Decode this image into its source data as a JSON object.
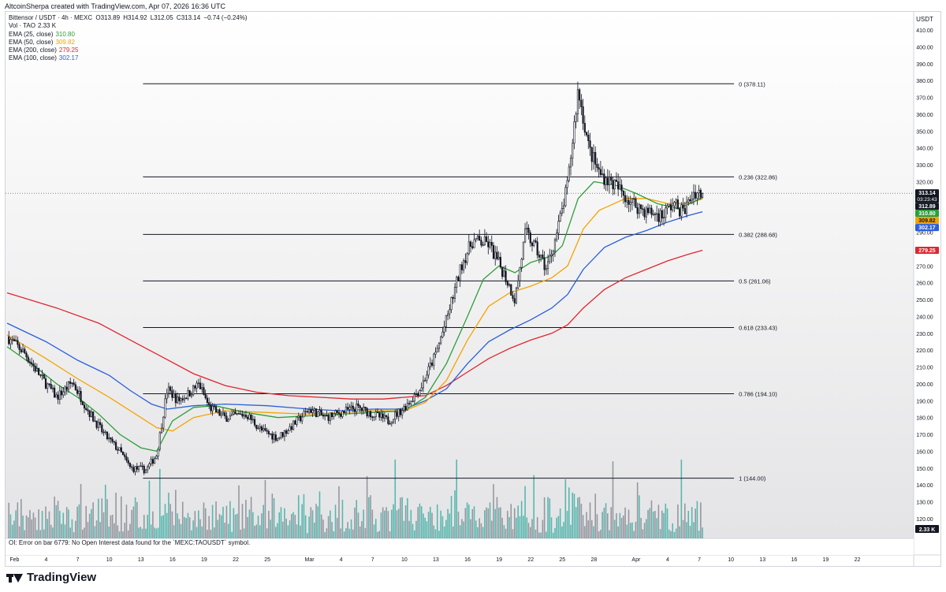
{
  "attribution": "AltcoinSherpa created with TradingView.com, Apr 07, 2026 16:36 UTC",
  "legend": {
    "symbol": "Bittensor / USDT · 4h · MEXC",
    "ohlc": {
      "open": "O313.89",
      "high": "H314.92",
      "low": "L312.05",
      "close": "C313.14",
      "change": "−0.74 (−0.24%)"
    },
    "rows": [
      {
        "label": "Vol · TAO",
        "value": "2.33 K",
        "color": "#131722"
      },
      {
        "label": "EMA (25, close)",
        "value": "310.80",
        "color": "#2e9e3a"
      },
      {
        "label": "EMA (50, close)",
        "value": "309.82",
        "color": "#f5a300"
      },
      {
        "label": "EMA (200, close)",
        "value": "279.25",
        "color": "#e0262d"
      },
      {
        "label": "EMA (100, close)",
        "value": "302.17",
        "color": "#2b5fd9"
      }
    ]
  },
  "oi_message": "OI: Error on bar 6779: No Open Interest data found for the `MEXC:TAOUSDT` symbol.",
  "footer_brand": "TradingView",
  "chart_data": {
    "type": "candlestick",
    "title": "",
    "currency_label": "USDT",
    "y_ticks": [
      120,
      130,
      140,
      150,
      160,
      170,
      180,
      190,
      200,
      210,
      220,
      230,
      240,
      250,
      260,
      270,
      280,
      290,
      300,
      310,
      320,
      330,
      340,
      350,
      360,
      370,
      380,
      390,
      400,
      410
    ],
    "y_tick_labels": [
      "120.00",
      "130.00",
      "140.00",
      "150.00",
      "160.00",
      "170.00",
      "180.00",
      "190.00",
      "200.00",
      "210.00",
      "220.00",
      "230.00",
      "240.00",
      "250.00",
      "260.00",
      "270.00",
      "280.00",
      "290.00",
      "300.00",
      "310.00",
      "320.00",
      "330.00",
      "340.00",
      "350.00",
      "360.00",
      "370.00",
      "380.00",
      "390.00",
      "400.00",
      "410.00"
    ],
    "ylim": [
      112,
      418
    ],
    "x_tick_labels": [
      "Feb",
      "4",
      "7",
      "10",
      "13",
      "16",
      "19",
      "22",
      "25",
      "Mar",
      "4",
      "7",
      "10",
      "13",
      "16",
      "19",
      "22",
      "25",
      "28",
      "Apr",
      "4",
      "7",
      "10",
      "13",
      "16",
      "19",
      "22"
    ],
    "x_tick_day_index": [
      0,
      3,
      6,
      9,
      12,
      15,
      18,
      21,
      24,
      28,
      31,
      34,
      37,
      40,
      43,
      46,
      49,
      52,
      55,
      59,
      62,
      65,
      68,
      71,
      74,
      77,
      80
    ],
    "xlim_days": [
      -0.7,
      84.3
    ],
    "last_day_index": 65.3,
    "fib_levels": [
      {
        "ratio": "0",
        "price": 378.11,
        "label": "0 (378.11)"
      },
      {
        "ratio": "0.236",
        "price": 322.86,
        "label": "0.236 (322.86)"
      },
      {
        "ratio": "0.382",
        "price": 288.68,
        "label": "0.382 (288.68)"
      },
      {
        "ratio": "0.5",
        "price": 261.06,
        "label": "0.5 (261.06)"
      },
      {
        "ratio": "0.618",
        "price": 233.43,
        "label": "0.618 (233.43)"
      },
      {
        "ratio": "0.786",
        "price": 194.1,
        "label": "0.786 (194.10)"
      },
      {
        "ratio": "1",
        "price": 144.0,
        "label": "1 (144.00)"
      }
    ],
    "fib_day_range": [
      12.2,
      65.3
    ],
    "price_path": [
      [
        -0.7,
        228
      ],
      [
        1,
        218
      ],
      [
        2.5,
        204
      ],
      [
        4,
        192
      ],
      [
        5.5,
        201
      ],
      [
        7,
        184
      ],
      [
        8.5,
        170
      ],
      [
        10,
        160
      ],
      [
        11,
        150
      ],
      [
        12.5,
        149
      ],
      [
        13.5,
        158
      ],
      [
        14.5,
        197
      ],
      [
        15.5,
        190
      ],
      [
        16.5,
        194
      ],
      [
        17.5,
        200
      ],
      [
        18.5,
        186
      ],
      [
        20,
        180
      ],
      [
        22,
        182
      ],
      [
        23.5,
        172
      ],
      [
        25,
        168
      ],
      [
        26.5,
        176
      ],
      [
        28,
        185
      ],
      [
        29.5,
        180
      ],
      [
        31,
        183
      ],
      [
        32.5,
        186
      ],
      [
        34,
        182
      ],
      [
        35.5,
        178
      ],
      [
        37,
        186
      ],
      [
        38.5,
        197
      ],
      [
        40,
        218
      ],
      [
        41,
        238
      ],
      [
        42.5,
        272
      ],
      [
        43.5,
        285
      ],
      [
        45,
        283
      ],
      [
        46.5,
        265
      ],
      [
        47.5,
        250
      ],
      [
        48.5,
        290
      ],
      [
        49.5,
        280
      ],
      [
        50.5,
        268
      ],
      [
        51.5,
        290
      ],
      [
        52.5,
        318
      ],
      [
        53.5,
        375
      ],
      [
        54.5,
        340
      ],
      [
        55.5,
        325
      ],
      [
        57,
        318
      ],
      [
        58.5,
        308
      ],
      [
        60,
        302
      ],
      [
        61.5,
        300
      ],
      [
        62.5,
        307
      ],
      [
        63.5,
        302
      ],
      [
        64.5,
        314
      ],
      [
        65.3,
        313.14
      ]
    ],
    "ema": {
      "ema25": {
        "color": "#2e9e3a",
        "last": 310.8,
        "points": [
          [
            -0.7,
            222
          ],
          [
            2,
            210
          ],
          [
            4,
            200
          ],
          [
            6,
            192
          ],
          [
            8,
            182
          ],
          [
            10,
            170
          ],
          [
            12,
            162
          ],
          [
            13.5,
            160
          ],
          [
            15,
            178
          ],
          [
            17,
            186
          ],
          [
            19,
            187
          ],
          [
            22,
            183
          ],
          [
            25,
            180
          ],
          [
            28,
            181
          ],
          [
            31,
            182
          ],
          [
            34,
            183
          ],
          [
            37,
            184
          ],
          [
            39,
            192
          ],
          [
            41,
            212
          ],
          [
            43,
            240
          ],
          [
            44.5,
            262
          ],
          [
            46,
            270
          ],
          [
            47.5,
            266
          ],
          [
            49,
            272
          ],
          [
            51,
            276
          ],
          [
            52,
            282
          ],
          [
            53.5,
            310
          ],
          [
            55,
            320
          ],
          [
            57,
            318
          ],
          [
            59,
            313
          ],
          [
            61,
            307
          ],
          [
            63,
            304
          ],
          [
            64.5,
            308
          ],
          [
            65.3,
            310.8
          ]
        ]
      },
      "ema50": {
        "color": "#f5a300",
        "last": 309.82,
        "points": [
          [
            -0.7,
            229
          ],
          [
            3,
            215
          ],
          [
            6,
            203
          ],
          [
            9,
            192
          ],
          [
            12,
            180
          ],
          [
            13.5,
            174
          ],
          [
            15,
            172
          ],
          [
            17,
            180
          ],
          [
            20,
            184
          ],
          [
            24,
            183
          ],
          [
            28,
            182
          ],
          [
            31,
            183
          ],
          [
            34,
            184
          ],
          [
            37,
            184
          ],
          [
            39,
            189
          ],
          [
            41,
            202
          ],
          [
            43,
            226
          ],
          [
            45,
            246
          ],
          [
            47,
            254
          ],
          [
            49,
            258
          ],
          [
            51,
            263
          ],
          [
            52.5,
            270
          ],
          [
            54,
            292
          ],
          [
            55.5,
            303
          ],
          [
            58,
            310
          ],
          [
            60,
            310
          ],
          [
            62,
            307
          ],
          [
            64,
            307
          ],
          [
            65.3,
            309.82
          ]
        ]
      },
      "ema100": {
        "color": "#2b5fd9",
        "last": 302.17,
        "points": [
          [
            -0.7,
            236
          ],
          [
            3,
            225
          ],
          [
            6,
            214
          ],
          [
            9,
            205
          ],
          [
            11,
            196
          ],
          [
            13,
            188
          ],
          [
            14.5,
            185
          ],
          [
            17,
            187
          ],
          [
            20,
            188
          ],
          [
            24,
            187
          ],
          [
            28,
            185
          ],
          [
            31,
            184
          ],
          [
            34,
            185
          ],
          [
            37,
            185
          ],
          [
            39,
            190
          ],
          [
            41,
            197
          ],
          [
            43,
            212
          ],
          [
            45,
            225
          ],
          [
            47,
            232
          ],
          [
            49,
            238
          ],
          [
            51,
            245
          ],
          [
            52.5,
            253
          ],
          [
            54,
            268
          ],
          [
            56,
            281
          ],
          [
            58,
            287
          ],
          [
            60,
            291
          ],
          [
            62,
            296
          ],
          [
            64,
            300
          ],
          [
            65.3,
            302.17
          ]
        ]
      },
      "ema200": {
        "color": "#e0262d",
        "last": 279.25,
        "points": [
          [
            -0.7,
            254
          ],
          [
            4,
            245
          ],
          [
            8,
            236
          ],
          [
            11,
            226
          ],
          [
            14,
            216
          ],
          [
            17,
            206
          ],
          [
            20,
            199
          ],
          [
            23,
            195
          ],
          [
            26,
            193
          ],
          [
            29,
            192
          ],
          [
            32,
            191
          ],
          [
            35,
            191
          ],
          [
            37,
            192
          ],
          [
            39,
            193
          ],
          [
            41,
            199
          ],
          [
            43,
            207
          ],
          [
            45,
            215
          ],
          [
            47,
            221
          ],
          [
            49,
            226
          ],
          [
            51,
            230
          ],
          [
            52.5,
            235
          ],
          [
            54,
            245
          ],
          [
            56,
            256
          ],
          [
            58,
            263
          ],
          [
            60,
            268
          ],
          [
            62,
            273
          ],
          [
            64,
            277
          ],
          [
            65.3,
            279.25
          ]
        ]
      }
    },
    "price_badges": [
      {
        "value": "313.14",
        "sub": "03:23:43",
        "bg": "#131722",
        "fg": "#ffffff"
      },
      {
        "value": "312.89",
        "bg": "#131722",
        "fg": "#ffffff"
      },
      {
        "value": "310.80",
        "bg": "#2e9e3a",
        "fg": "#ffffff"
      },
      {
        "value": "309.82",
        "bg": "#f5a300",
        "fg": "#131722"
      },
      {
        "value": "302.17",
        "bg": "#2b5fd9",
        "fg": "#ffffff"
      },
      {
        "value": "279.25",
        "bg": "#e0262d",
        "fg": "#ffffff"
      }
    ],
    "volume_badge": "2.33 K",
    "volume_color_up": "#26a69a",
    "volume_color_down": "#787b86"
  }
}
